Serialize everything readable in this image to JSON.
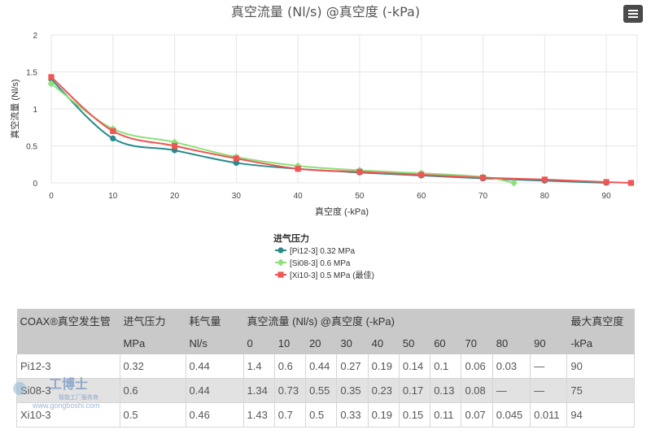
{
  "chart_data": {
    "type": "line",
    "title": "真空流量 (Nl/s) @真空度 (-kPa)",
    "xlabel": "真空度 (-kPa)",
    "ylabel": "真空流量 (Nl/s)",
    "xlim": [
      0,
      95
    ],
    "ylim": [
      0,
      2
    ],
    "xticks": [
      0,
      10,
      20,
      30,
      40,
      50,
      60,
      70,
      80,
      90
    ],
    "yticks": [
      0,
      0.5,
      1,
      1.5,
      2
    ],
    "grid": true,
    "legend_title": "进气压力",
    "legend_position": "bottom-center",
    "series": [
      {
        "name": "[Pi12-3] 0.32 MPa",
        "color": "#2a8a8a",
        "marker": "circle",
        "x": [
          0,
          10,
          20,
          30,
          40,
          50,
          60,
          70,
          80,
          90
        ],
        "y": [
          1.4,
          0.6,
          0.44,
          0.27,
          0.19,
          0.14,
          0.1,
          0.06,
          0.03,
          0
        ]
      },
      {
        "name": "[Si08-3] 0.6 MPa",
        "color": "#8ee07a",
        "marker": "diamond",
        "x": [
          0,
          10,
          20,
          30,
          40,
          50,
          60,
          70,
          75
        ],
        "y": [
          1.34,
          0.73,
          0.55,
          0.35,
          0.23,
          0.17,
          0.13,
          0.08,
          0
        ]
      },
      {
        "name": "[Xi10-3] 0.5 MPa (最佳)",
        "color": "#ee5555",
        "marker": "square",
        "x": [
          0,
          10,
          20,
          30,
          40,
          50,
          60,
          70,
          80,
          90,
          94
        ],
        "y": [
          1.43,
          0.7,
          0.5,
          0.33,
          0.19,
          0.15,
          0.11,
          0.07,
          0.045,
          0.011,
          0
        ]
      }
    ]
  },
  "table": {
    "header1": [
      "COAX®真空发生管",
      "进气压力",
      "耗气量",
      "真空流量 (Nl/s) @真空度 (-kPa)",
      "最大真空度"
    ],
    "header2": [
      "",
      "MPa",
      "Nl/s",
      "0",
      "10",
      "20",
      "30",
      "40",
      "50",
      "60",
      "70",
      "80",
      "90",
      "-kPa"
    ],
    "rows": [
      [
        "Pi12-3",
        "0.32",
        "0.44",
        "1.4",
        "0.6",
        "0.44",
        "0.27",
        "0.19",
        "0.14",
        "0.1",
        "0.06",
        "0.03",
        "—",
        "90"
      ],
      [
        "Si08-3",
        "0.6",
        "0.44",
        "1.34",
        "0.73",
        "0.55",
        "0.35",
        "0.23",
        "0.17",
        "0.13",
        "0.08",
        "—",
        "—",
        "75"
      ],
      [
        "Xi10-3",
        "0.5",
        "0.46",
        "1.43",
        "0.7",
        "0.5",
        "0.33",
        "0.19",
        "0.15",
        "0.11",
        "0.07",
        "0.045",
        "0.011",
        "94"
      ]
    ]
  },
  "watermark": {
    "brand": "工博士",
    "slogan": "智能工厂服务商",
    "url": "www.gongboshi.com"
  },
  "icons": {
    "menu": "hamburger-menu-icon"
  }
}
